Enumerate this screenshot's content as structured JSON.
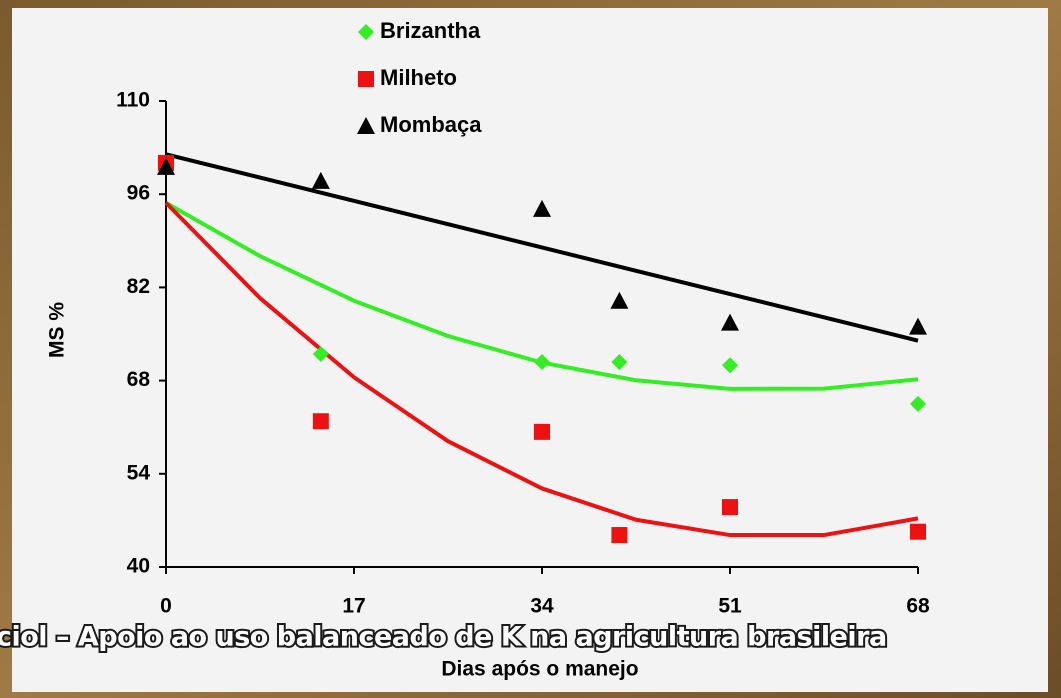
{
  "chart_data": {
    "type": "scatter",
    "x_label": "Dias após o manejo",
    "y_label": "MS %",
    "x": [
      0,
      14,
      34,
      41,
      51,
      68
    ],
    "series": [
      {
        "name": "Brizantha",
        "color": "#33ee22",
        "marker": "diamond",
        "values": [
          100.1,
          72.0,
          70.8,
          70.8,
          70.3,
          64.5
        ],
        "trend": {
          "x": [
            0,
            8.5,
            17,
            25.5,
            34,
            42.5,
            51,
            59.5,
            68
          ],
          "values": [
            94.7,
            86.7,
            80.0,
            74.7,
            70.7,
            68.05,
            66.75,
            66.8,
            68.2
          ]
        }
      },
      {
        "name": "Milheto",
        "color": "#ee1111",
        "marker": "square",
        "values": [
          100.7,
          61.9,
          60.3,
          44.8,
          49.0,
          45.3
        ],
        "trend": {
          "x": [
            0,
            8.5,
            17,
            25.5,
            34,
            42.5,
            51,
            59.5,
            68
          ],
          "values": [
            94.7,
            80.4,
            68.5,
            58.9,
            51.8,
            47.1,
            44.8,
            44.8,
            47.3
          ]
        }
      },
      {
        "name": "Mombaça",
        "color": "#000000",
        "marker": "triangle",
        "values": [
          100.1,
          98.0,
          93.8,
          80.0,
          76.7,
          76.1
        ],
        "trend": {
          "x": [
            0,
            68
          ],
          "values": [
            102.0,
            74.0
          ]
        }
      }
    ],
    "xlim": [
      0,
      68
    ],
    "xticks": [
      0,
      17,
      34,
      51,
      68
    ],
    "ylim": [
      40,
      110
    ],
    "yticks": [
      40,
      54,
      68,
      82,
      96,
      110
    ],
    "grid": false
  },
  "footer_text": "ciol – Apoio ao uso balanceado de K na agricultura brasileira"
}
